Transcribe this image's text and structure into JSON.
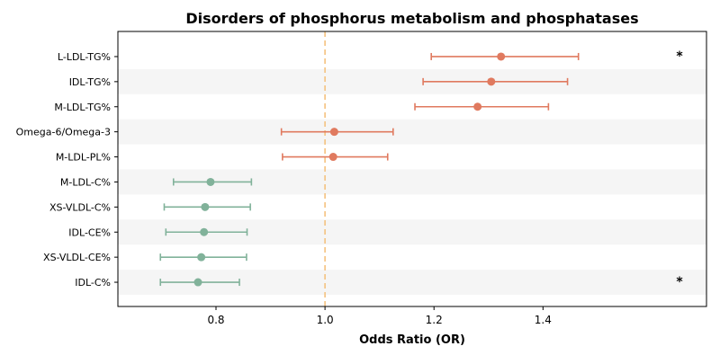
{
  "chart_data": {
    "type": "forest",
    "title": "Disorders of phosphorus metabolism and phosphatases",
    "xlabel": "Odds Ratio (OR)",
    "ylabel": "",
    "xlim": [
      0.62,
      1.7
    ],
    "xticks": [
      0.8,
      1.0,
      1.2,
      1.4
    ],
    "xtick_labels": [
      "0.8",
      "1.0",
      "1.2",
      "1.4"
    ],
    "reference_line": 1.0,
    "grid": false,
    "row_banding": true,
    "colors": {
      "positive": "#E07A5F",
      "negative": "#81B29A",
      "reference": "#F4C27F",
      "band": "#F5F5F5"
    },
    "rows": [
      {
        "label": "L-LDL-TG%",
        "or": 1.323,
        "lower": 1.195,
        "upper": 1.465,
        "direction": "positive",
        "marker": "*"
      },
      {
        "label": "IDL-TG%",
        "or": 1.305,
        "lower": 1.18,
        "upper": 1.445,
        "direction": "positive",
        "marker": ""
      },
      {
        "label": "M-LDL-TG%",
        "or": 1.28,
        "lower": 1.165,
        "upper": 1.41,
        "direction": "positive",
        "marker": ""
      },
      {
        "label": "Omega-6/Omega-3",
        "or": 1.017,
        "lower": 0.92,
        "upper": 1.125,
        "direction": "positive",
        "marker": ""
      },
      {
        "label": "M-LDL-PL%",
        "or": 1.015,
        "lower": 0.922,
        "upper": 1.115,
        "direction": "positive",
        "marker": ""
      },
      {
        "label": "M-LDL-C%",
        "or": 0.79,
        "lower": 0.722,
        "upper": 0.865,
        "direction": "negative",
        "marker": ""
      },
      {
        "label": "XS-VLDL-C%",
        "or": 0.78,
        "lower": 0.705,
        "upper": 0.863,
        "direction": "negative",
        "marker": ""
      },
      {
        "label": "IDL-CE%",
        "or": 0.778,
        "lower": 0.708,
        "upper": 0.857,
        "direction": "negative",
        "marker": ""
      },
      {
        "label": "XS-VLDL-CE%",
        "or": 0.773,
        "lower": 0.698,
        "upper": 0.856,
        "direction": "negative",
        "marker": ""
      },
      {
        "label": "IDL-C%",
        "or": 0.767,
        "lower": 0.698,
        "upper": 0.843,
        "direction": "negative",
        "marker": "*"
      }
    ]
  }
}
